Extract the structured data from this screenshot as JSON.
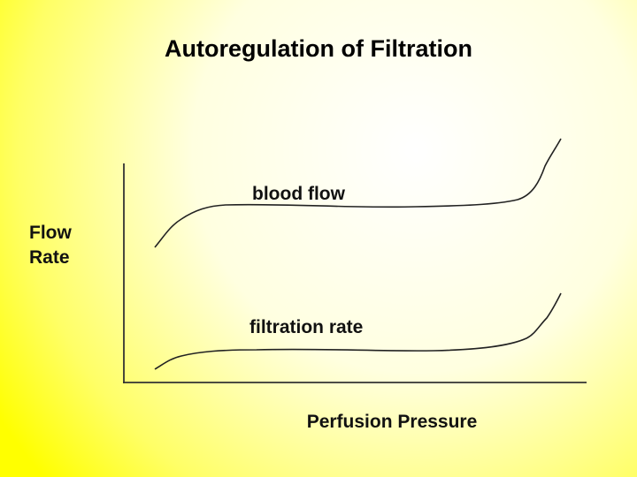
{
  "title": "Autoregulation of Filtration",
  "y_axis_label": {
    "lines": [
      "Flow",
      "Rate"
    ]
  },
  "x_axis_label": "Perfusion Pressure",
  "curves": [
    {
      "label": "blood flow"
    },
    {
      "label": "filtration rate"
    }
  ]
}
